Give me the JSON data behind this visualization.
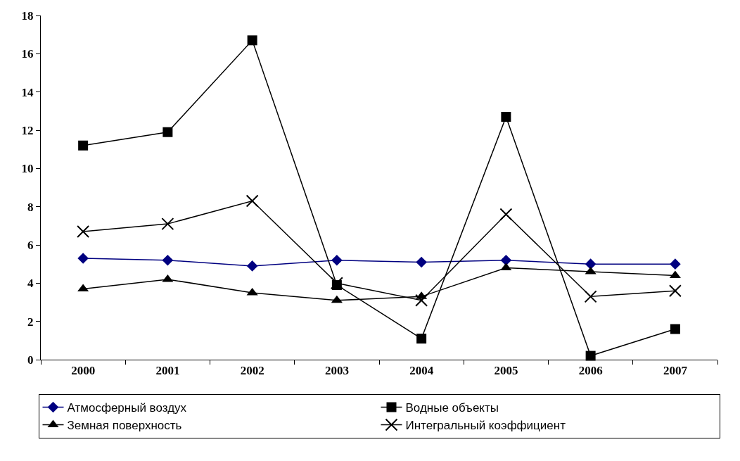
{
  "chart_data": {
    "type": "line",
    "categories": [
      "2000",
      "2001",
      "2002",
      "2003",
      "2004",
      "2005",
      "2006",
      "2007"
    ],
    "ylim": [
      0,
      18
    ],
    "yticks": [
      0,
      2,
      4,
      6,
      8,
      10,
      12,
      14,
      16,
      18
    ],
    "grid": false,
    "legend": "bottom",
    "series": [
      {
        "name": "Атмосферный воздух",
        "color": "#000080",
        "marker": "diamond",
        "values": [
          5.3,
          5.2,
          4.9,
          5.2,
          5.1,
          5.2,
          5.0,
          5.0
        ]
      },
      {
        "name": "Водные объекты",
        "color": "#000000",
        "marker": "square",
        "values": [
          11.2,
          11.9,
          16.7,
          3.9,
          1.1,
          12.7,
          0.2,
          1.6
        ]
      },
      {
        "name": "Земная поверхность",
        "color": "#000000",
        "marker": "triangle",
        "values": [
          3.7,
          4.2,
          3.5,
          3.1,
          3.3,
          4.8,
          4.6,
          4.4
        ]
      },
      {
        "name": "Интегральный коэффициент",
        "color": "#000000",
        "marker": "cross",
        "values": [
          6.7,
          7.1,
          8.3,
          4.0,
          3.1,
          7.6,
          3.3,
          3.6
        ]
      }
    ]
  }
}
